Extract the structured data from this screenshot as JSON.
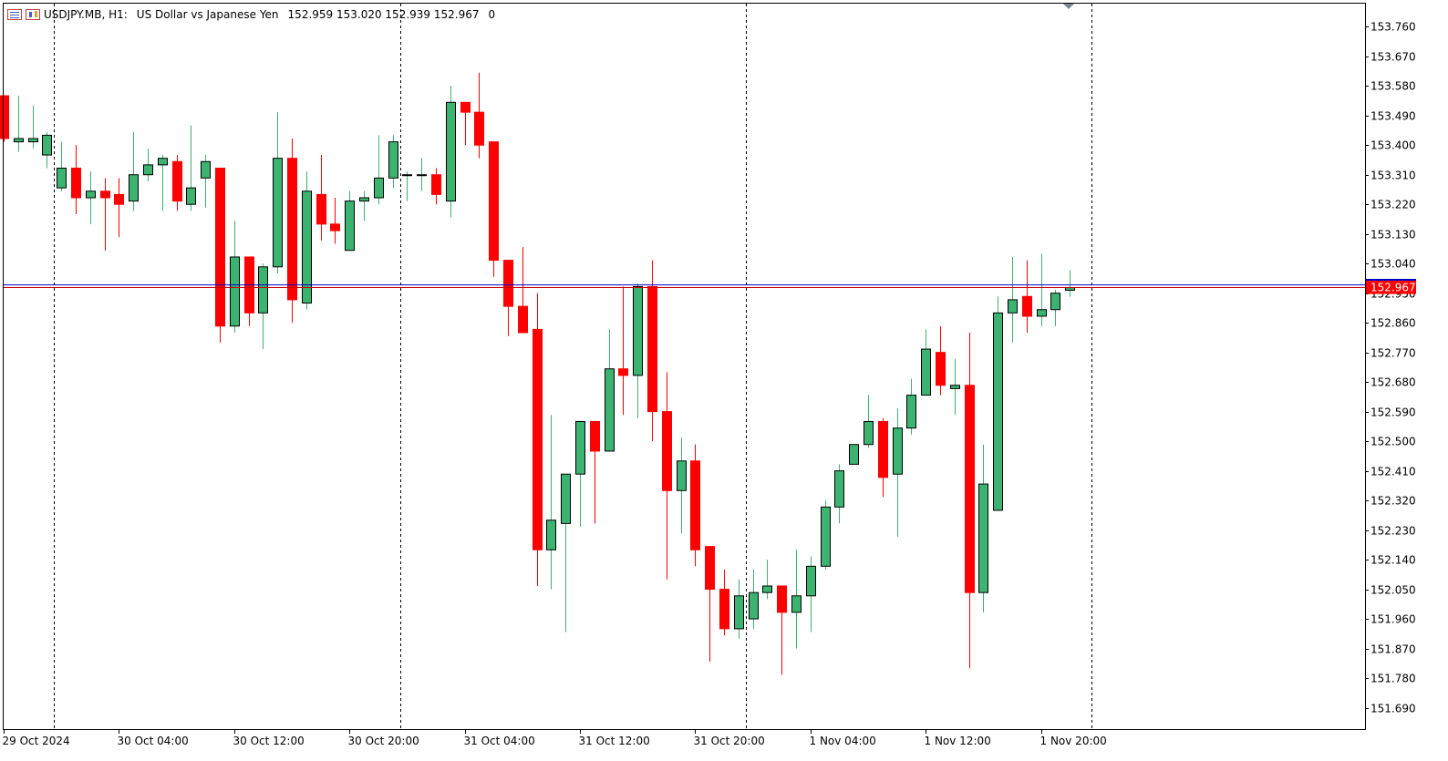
{
  "header": {
    "symbol": "USDJPY.MB, H1:",
    "description": "US Dollar vs Japanese Yen",
    "ohlc": "152.959 153.020 152.939 152.967",
    "volume": "0"
  },
  "colors": {
    "bull": "#3cb371",
    "bear": "#ff0000",
    "bid_line": "#0000cc",
    "ask_line": "#cc0000",
    "price_label_bg": "#ff0000"
  },
  "chart_data": {
    "type": "candlestick",
    "ylim": [
      151.625,
      153.83
    ],
    "y_ticks": [
      "153.760",
      "153.670",
      "153.580",
      "153.490",
      "153.400",
      "153.310",
      "153.220",
      "153.130",
      "153.040",
      "152.950",
      "152.860",
      "152.770",
      "152.680",
      "152.590",
      "152.500",
      "152.410",
      "152.320",
      "152.230",
      "152.140",
      "152.050",
      "151.960",
      "151.870",
      "151.780",
      "151.690"
    ],
    "x_labels": [
      {
        "label": "29 Oct 2024",
        "bar": 0
      },
      {
        "label": "30 Oct 04:00",
        "bar": 8
      },
      {
        "label": "30 Oct 12:00",
        "bar": 16
      },
      {
        "label": "30 Oct 20:00",
        "bar": 24
      },
      {
        "label": "31 Oct 04:00",
        "bar": 32
      },
      {
        "label": "31 Oct 12:00",
        "bar": 40
      },
      {
        "label": "31 Oct 20:00",
        "bar": 48
      },
      {
        "label": "1 Nov 04:00",
        "bar": 56
      },
      {
        "label": "1 Nov 12:00",
        "bar": 64
      },
      {
        "label": "1 Nov 20:00",
        "bar": 72
      }
    ],
    "day_separators": [
      4,
      28,
      52,
      76
    ],
    "current_price": "152.967",
    "bid": 152.967,
    "ask": 152.975,
    "candles": [
      [
        153.55,
        153.55,
        153.41,
        153.42
      ],
      [
        153.41,
        153.55,
        153.38,
        153.42
      ],
      [
        153.41,
        153.52,
        153.39,
        153.42
      ],
      [
        153.37,
        153.44,
        153.33,
        153.43
      ],
      [
        153.27,
        153.41,
        153.26,
        153.33
      ],
      [
        153.33,
        153.4,
        153.19,
        153.24
      ],
      [
        153.24,
        153.32,
        153.16,
        153.26
      ],
      [
        153.26,
        153.3,
        153.08,
        153.24
      ],
      [
        153.25,
        153.3,
        153.12,
        153.22
      ],
      [
        153.23,
        153.44,
        153.2,
        153.31
      ],
      [
        153.31,
        153.39,
        153.29,
        153.34
      ],
      [
        153.34,
        153.37,
        153.2,
        153.36
      ],
      [
        153.35,
        153.37,
        153.2,
        153.23
      ],
      [
        153.22,
        153.46,
        153.2,
        153.27
      ],
      [
        153.3,
        153.37,
        153.21,
        153.35
      ],
      [
        153.33,
        153.33,
        152.8,
        152.85
      ],
      [
        152.85,
        153.17,
        152.83,
        153.06
      ],
      [
        153.06,
        153.06,
        152.85,
        152.89
      ],
      [
        152.89,
        153.04,
        152.78,
        153.03
      ],
      [
        153.03,
        153.5,
        153.01,
        153.36
      ],
      [
        153.36,
        153.42,
        152.86,
        152.93
      ],
      [
        152.92,
        153.32,
        152.9,
        153.26
      ],
      [
        153.25,
        153.37,
        153.11,
        153.16
      ],
      [
        153.16,
        153.24,
        153.1,
        153.14
      ],
      [
        153.08,
        153.26,
        153.08,
        153.23
      ],
      [
        153.23,
        153.26,
        153.17,
        153.24
      ],
      [
        153.24,
        153.43,
        153.22,
        153.3
      ],
      [
        153.3,
        153.43,
        153.27,
        153.41
      ],
      [
        153.31,
        153.32,
        153.23,
        153.31
      ],
      [
        153.31,
        153.36,
        153.26,
        153.31
      ],
      [
        153.31,
        153.33,
        153.22,
        153.25
      ],
      [
        153.23,
        153.58,
        153.18,
        153.53
      ],
      [
        153.53,
        153.53,
        153.4,
        153.5
      ],
      [
        153.5,
        153.62,
        153.36,
        153.4
      ],
      [
        153.41,
        153.41,
        153.0,
        153.05
      ],
      [
        153.05,
        153.05,
        152.82,
        152.91
      ],
      [
        152.91,
        153.09,
        152.83,
        152.83
      ],
      [
        152.84,
        152.95,
        152.06,
        152.17
      ],
      [
        152.17,
        152.58,
        152.05,
        152.26
      ],
      [
        152.25,
        152.4,
        151.92,
        152.4
      ],
      [
        152.4,
        152.56,
        152.24,
        152.56
      ],
      [
        152.56,
        152.56,
        152.25,
        152.47
      ],
      [
        152.47,
        152.84,
        152.47,
        152.72
      ],
      [
        152.72,
        152.97,
        152.58,
        152.7
      ],
      [
        152.7,
        152.98,
        152.57,
        152.97
      ],
      [
        152.97,
        153.05,
        152.5,
        152.59
      ],
      [
        152.59,
        152.71,
        152.08,
        152.35
      ],
      [
        152.35,
        152.51,
        152.22,
        152.44
      ],
      [
        152.44,
        152.49,
        152.12,
        152.17
      ],
      [
        152.18,
        152.17,
        151.83,
        152.05
      ],
      [
        152.05,
        152.11,
        151.91,
        151.93
      ],
      [
        151.93,
        152.08,
        151.9,
        152.03
      ],
      [
        151.96,
        152.11,
        151.93,
        152.04
      ],
      [
        152.04,
        152.14,
        152.02,
        152.06
      ],
      [
        152.06,
        152.06,
        151.79,
        151.98
      ],
      [
        151.98,
        152.17,
        151.87,
        152.03
      ],
      [
        152.03,
        152.15,
        151.92,
        152.12
      ],
      [
        152.12,
        152.32,
        152.11,
        152.3
      ],
      [
        152.3,
        152.43,
        152.25,
        152.41
      ],
      [
        152.43,
        152.48,
        152.43,
        152.49
      ],
      [
        152.49,
        152.64,
        152.48,
        152.56
      ],
      [
        152.56,
        152.57,
        152.33,
        152.39
      ],
      [
        152.4,
        152.6,
        152.21,
        152.54
      ],
      [
        152.54,
        152.69,
        152.52,
        152.64
      ],
      [
        152.64,
        152.84,
        152.64,
        152.78
      ],
      [
        152.77,
        152.85,
        152.64,
        152.67
      ],
      [
        152.66,
        152.75,
        152.58,
        152.67
      ],
      [
        152.67,
        152.83,
        151.81,
        152.04
      ],
      [
        152.04,
        152.49,
        151.98,
        152.37
      ],
      [
        152.29,
        152.94,
        152.29,
        152.89
      ],
      [
        152.89,
        153.06,
        152.8,
        152.93
      ],
      [
        152.94,
        153.05,
        152.83,
        152.88
      ],
      [
        152.88,
        153.07,
        152.85,
        152.9
      ],
      [
        152.9,
        152.96,
        152.85,
        152.95
      ],
      [
        152.959,
        153.02,
        152.939,
        152.967
      ]
    ]
  }
}
